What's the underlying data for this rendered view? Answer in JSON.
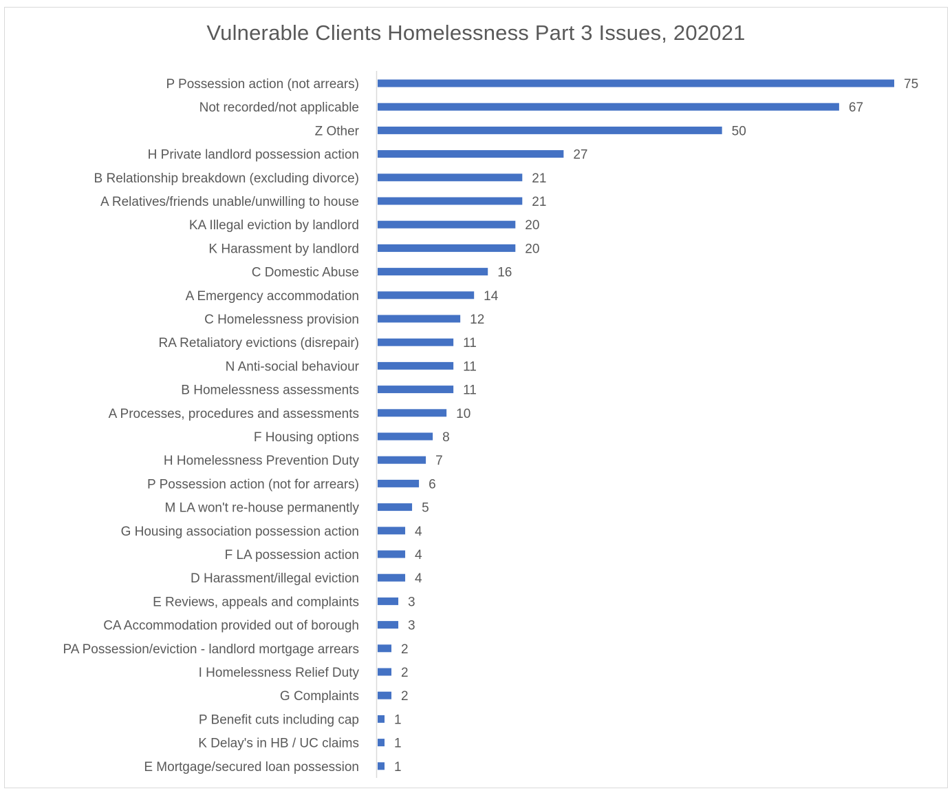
{
  "chart_data": {
    "type": "bar",
    "orientation": "horizontal",
    "title": "Vulnerable Clients Homelessness Part 3 Issues, 202021",
    "xlabel": "",
    "ylabel": "",
    "xlim": [
      0,
      75
    ],
    "grid": false,
    "legend": "none",
    "data_labels": true,
    "bar_color": "#4472C4",
    "categories": [
      "P Possession action (not arrears)",
      "Not recorded/not applicable",
      "Z Other",
      "H Private landlord possession action",
      "B Relationship breakdown (excluding divorce)",
      "A Relatives/friends unable/unwilling to house",
      "KA Illegal eviction by landlord",
      "K Harassment by landlord",
      "C Domestic Abuse",
      "A Emergency accommodation",
      "C Homelessness provision",
      "RA Retaliatory evictions (disrepair)",
      "N Anti-social behaviour",
      "B Homelessness assessments",
      "A Processes, procedures and assessments",
      "F Housing options",
      "H Homelessness Prevention Duty",
      "P Possession action (not for arrears)",
      "M LA won't re-house permanently",
      "G Housing association possession action",
      "F LA possession action",
      "D Harassment/illegal eviction",
      "E Reviews, appeals and complaints",
      "CA Accommodation provided out of borough",
      "PA Possession/eviction - landlord mortgage arrears",
      "I Homelessness Relief Duty",
      "G Complaints",
      "P Benefit cuts including cap",
      "K Delay's in HB / UC claims",
      "E Mortgage/secured loan possession"
    ],
    "values": [
      75,
      67,
      50,
      27,
      21,
      21,
      20,
      20,
      16,
      14,
      12,
      11,
      11,
      11,
      10,
      8,
      7,
      6,
      5,
      4,
      4,
      4,
      3,
      3,
      2,
      2,
      2,
      1,
      1,
      1
    ]
  }
}
